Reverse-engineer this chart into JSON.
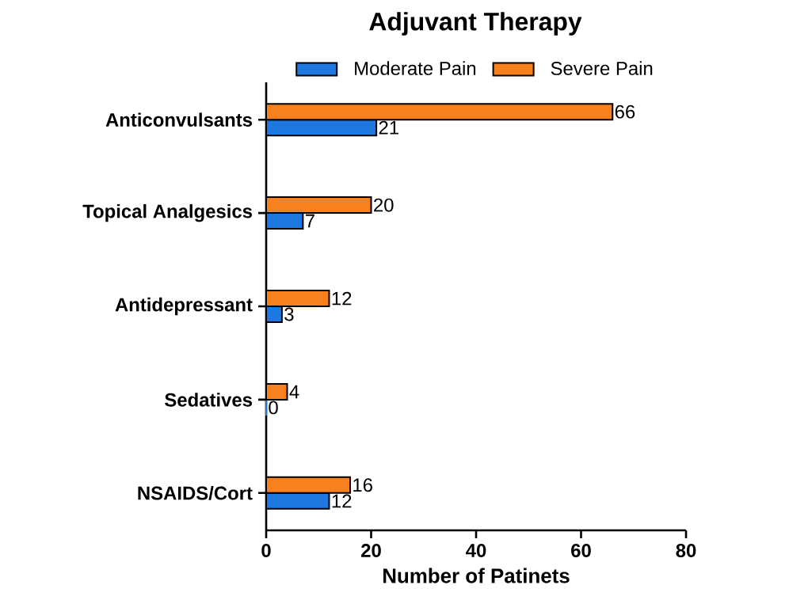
{
  "chart_data": {
    "type": "bar",
    "orientation": "horizontal",
    "title": "Adjuvant Therapy",
    "xlabel": "Number of Patinets",
    "categories": [
      "Anticonvulsants",
      "Topical Analgesics",
      "Antidepressant",
      "Sedatives",
      "NSAIDS/Cort"
    ],
    "series": [
      {
        "name": "Moderate Pain",
        "color": "#1f78e0",
        "values": [
          21,
          7,
          3,
          0,
          12
        ]
      },
      {
        "name": "Severe Pain",
        "color": "#f7801f",
        "values": [
          66,
          20,
          12,
          4,
          16
        ]
      }
    ],
    "xlim": [
      0,
      80
    ],
    "xticks": [
      0,
      20,
      40,
      60,
      80
    ],
    "data_labels": true,
    "legend": "top",
    "grid": false
  }
}
